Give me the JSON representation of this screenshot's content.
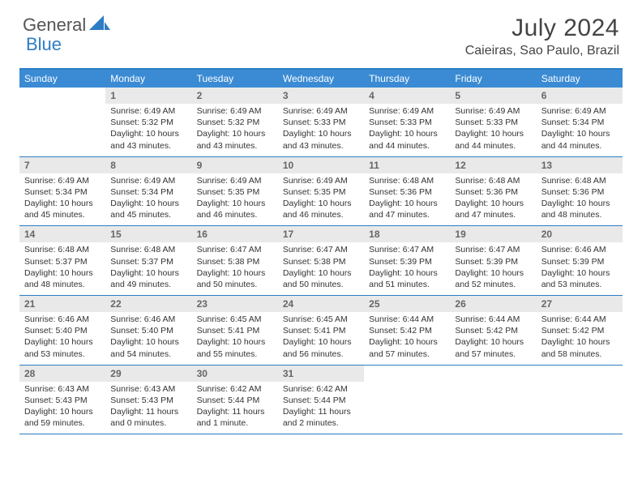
{
  "logo": {
    "text1": "General",
    "text2": "Blue",
    "icon_color": "#2d7dc4"
  },
  "header": {
    "title": "July 2024",
    "location": "Caieiras, Sao Paulo, Brazil"
  },
  "colors": {
    "header_bar": "#3b8bd4",
    "border": "#2d7dc4",
    "daynum_bg": "#e9e9e9",
    "daynum_text": "#666666",
    "body_text": "#333333"
  },
  "dow": [
    "Sunday",
    "Monday",
    "Tuesday",
    "Wednesday",
    "Thursday",
    "Friday",
    "Saturday"
  ],
  "weeks": [
    [
      {
        "n": "",
        "sr": "",
        "ss": "",
        "dl": ""
      },
      {
        "n": "1",
        "sr": "6:49 AM",
        "ss": "5:32 PM",
        "dl": "10 hours and 43 minutes."
      },
      {
        "n": "2",
        "sr": "6:49 AM",
        "ss": "5:32 PM",
        "dl": "10 hours and 43 minutes."
      },
      {
        "n": "3",
        "sr": "6:49 AM",
        "ss": "5:33 PM",
        "dl": "10 hours and 43 minutes."
      },
      {
        "n": "4",
        "sr": "6:49 AM",
        "ss": "5:33 PM",
        "dl": "10 hours and 44 minutes."
      },
      {
        "n": "5",
        "sr": "6:49 AM",
        "ss": "5:33 PM",
        "dl": "10 hours and 44 minutes."
      },
      {
        "n": "6",
        "sr": "6:49 AM",
        "ss": "5:34 PM",
        "dl": "10 hours and 44 minutes."
      }
    ],
    [
      {
        "n": "7",
        "sr": "6:49 AM",
        "ss": "5:34 PM",
        "dl": "10 hours and 45 minutes."
      },
      {
        "n": "8",
        "sr": "6:49 AM",
        "ss": "5:34 PM",
        "dl": "10 hours and 45 minutes."
      },
      {
        "n": "9",
        "sr": "6:49 AM",
        "ss": "5:35 PM",
        "dl": "10 hours and 46 minutes."
      },
      {
        "n": "10",
        "sr": "6:49 AM",
        "ss": "5:35 PM",
        "dl": "10 hours and 46 minutes."
      },
      {
        "n": "11",
        "sr": "6:48 AM",
        "ss": "5:36 PM",
        "dl": "10 hours and 47 minutes."
      },
      {
        "n": "12",
        "sr": "6:48 AM",
        "ss": "5:36 PM",
        "dl": "10 hours and 47 minutes."
      },
      {
        "n": "13",
        "sr": "6:48 AM",
        "ss": "5:36 PM",
        "dl": "10 hours and 48 minutes."
      }
    ],
    [
      {
        "n": "14",
        "sr": "6:48 AM",
        "ss": "5:37 PM",
        "dl": "10 hours and 48 minutes."
      },
      {
        "n": "15",
        "sr": "6:48 AM",
        "ss": "5:37 PM",
        "dl": "10 hours and 49 minutes."
      },
      {
        "n": "16",
        "sr": "6:47 AM",
        "ss": "5:38 PM",
        "dl": "10 hours and 50 minutes."
      },
      {
        "n": "17",
        "sr": "6:47 AM",
        "ss": "5:38 PM",
        "dl": "10 hours and 50 minutes."
      },
      {
        "n": "18",
        "sr": "6:47 AM",
        "ss": "5:39 PM",
        "dl": "10 hours and 51 minutes."
      },
      {
        "n": "19",
        "sr": "6:47 AM",
        "ss": "5:39 PM",
        "dl": "10 hours and 52 minutes."
      },
      {
        "n": "20",
        "sr": "6:46 AM",
        "ss": "5:39 PM",
        "dl": "10 hours and 53 minutes."
      }
    ],
    [
      {
        "n": "21",
        "sr": "6:46 AM",
        "ss": "5:40 PM",
        "dl": "10 hours and 53 minutes."
      },
      {
        "n": "22",
        "sr": "6:46 AM",
        "ss": "5:40 PM",
        "dl": "10 hours and 54 minutes."
      },
      {
        "n": "23",
        "sr": "6:45 AM",
        "ss": "5:41 PM",
        "dl": "10 hours and 55 minutes."
      },
      {
        "n": "24",
        "sr": "6:45 AM",
        "ss": "5:41 PM",
        "dl": "10 hours and 56 minutes."
      },
      {
        "n": "25",
        "sr": "6:44 AM",
        "ss": "5:42 PM",
        "dl": "10 hours and 57 minutes."
      },
      {
        "n": "26",
        "sr": "6:44 AM",
        "ss": "5:42 PM",
        "dl": "10 hours and 57 minutes."
      },
      {
        "n": "27",
        "sr": "6:44 AM",
        "ss": "5:42 PM",
        "dl": "10 hours and 58 minutes."
      }
    ],
    [
      {
        "n": "28",
        "sr": "6:43 AM",
        "ss": "5:43 PM",
        "dl": "10 hours and 59 minutes."
      },
      {
        "n": "29",
        "sr": "6:43 AM",
        "ss": "5:43 PM",
        "dl": "11 hours and 0 minutes."
      },
      {
        "n": "30",
        "sr": "6:42 AM",
        "ss": "5:44 PM",
        "dl": "11 hours and 1 minute."
      },
      {
        "n": "31",
        "sr": "6:42 AM",
        "ss": "5:44 PM",
        "dl": "11 hours and 2 minutes."
      },
      {
        "n": "",
        "sr": "",
        "ss": "",
        "dl": ""
      },
      {
        "n": "",
        "sr": "",
        "ss": "",
        "dl": ""
      },
      {
        "n": "",
        "sr": "",
        "ss": "",
        "dl": ""
      }
    ]
  ],
  "labels": {
    "sunrise": "Sunrise:",
    "sunset": "Sunset:",
    "daylight": "Daylight:"
  }
}
